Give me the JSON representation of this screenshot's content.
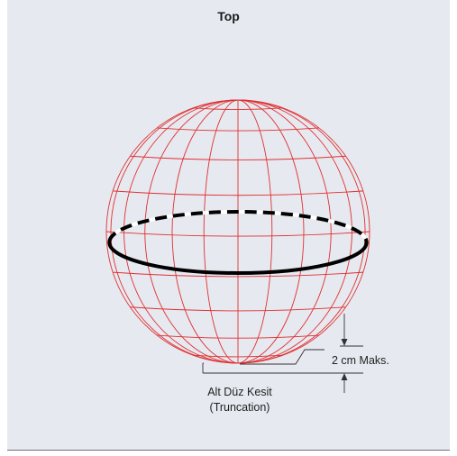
{
  "title": "Top",
  "annotations": {
    "max_depth": "2 cm Maks.",
    "truncation_line1": "Alt Düz Kesit",
    "truncation_line2": "(Truncation)"
  },
  "colors": {
    "background": "#e6e9f0",
    "wireframe": "#e03030",
    "belt": "#000000"
  }
}
